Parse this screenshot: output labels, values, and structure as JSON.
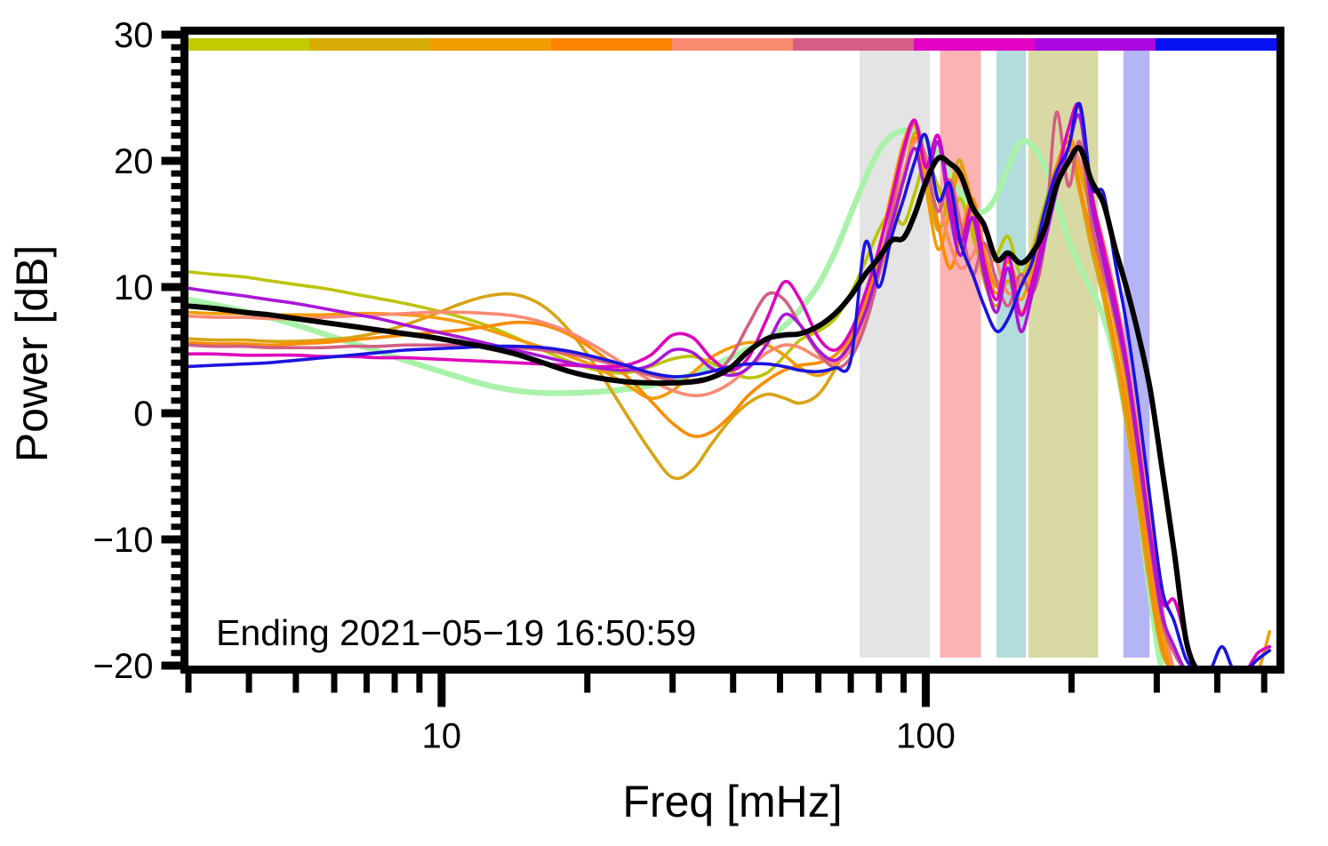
{
  "figure": {
    "background": "#ffffff"
  },
  "chart_data": {
    "type": "line",
    "title": "",
    "xlabel": "Freq [mHz]",
    "ylabel": "Power [dB]",
    "annotation": "Ending 2021−05−19 16:50:59",
    "x_scale": "log",
    "x_domain": [
      3,
      530
    ],
    "y_domain": [
      -20,
      30
    ],
    "grid": false,
    "legend": "none",
    "x_major_ticks": [
      10,
      100
    ],
    "x_major_tick_labels": [
      "10",
      "100"
    ],
    "x_minor_ticks": [
      3,
      4,
      5,
      6,
      7,
      8,
      9,
      20,
      30,
      40,
      50,
      60,
      70,
      80,
      90,
      200,
      300,
      400,
      500
    ],
    "y_major_ticks": [
      30,
      20,
      10,
      0,
      -10,
      -20
    ],
    "y_major_tick_labels": [
      "30",
      "20",
      "10",
      "0",
      "−10",
      "−20"
    ],
    "y_minor_step": 1,
    "bands": [
      {
        "name": "band-gray",
        "x0": 73,
        "x1": 102,
        "color": "#e4e4e4"
      },
      {
        "name": "band-pink",
        "x0": 107,
        "x1": 130,
        "color": "#fbb3b3"
      },
      {
        "name": "band-teal",
        "x0": 140,
        "x1": 161,
        "color": "#b3dcdc"
      },
      {
        "name": "band-olive",
        "x0": 163,
        "x1": 227,
        "color": "#d9d9a4"
      },
      {
        "name": "band-lavender",
        "x0": 256,
        "x1": 290,
        "color": "#b5b5f5"
      }
    ],
    "colorbar_segments": [
      "#c2cb01",
      "#d7ad05",
      "#f29d02",
      "#fb8502",
      "#fa8a70",
      "#d55f84",
      "#e202c4",
      "#aa08e0",
      "#0713f2"
    ],
    "x": [
      3.0,
      3.4,
      3.9,
      4.4,
      5.0,
      5.7,
      6.5,
      7.4,
      8.4,
      9.6,
      11,
      12.5,
      14.2,
      16.2,
      18.4,
      21,
      24,
      27,
      30,
      33,
      36,
      39.5,
      43,
      47,
      51,
      55,
      60,
      65,
      70,
      75,
      80,
      85,
      90,
      95,
      100,
      106,
      112,
      118,
      125,
      132,
      140,
      148,
      157,
      166,
      176,
      186,
      197,
      208,
      220,
      233,
      246,
      260,
      275,
      291,
      308,
      326,
      345,
      365,
      386,
      409,
      433,
      458,
      485,
      513
    ],
    "series": [
      {
        "name": "smooth-reference",
        "color": "#a9f2a9",
        "width": 6.5,
        "values": [
          9.0,
          8.6,
          8.1,
          7.6,
          7.0,
          6.3,
          5.6,
          4.9,
          4.2,
          3.5,
          2.8,
          2.2,
          1.8,
          1.6,
          1.6,
          1.7,
          1.9,
          2.2,
          2.6,
          3.1,
          3.7,
          4.4,
          5.1,
          5.9,
          6.9,
          8.2,
          10.2,
          12.8,
          15.8,
          18.6,
          20.8,
          22.0,
          22.4,
          22.3,
          21.7,
          20.5,
          19.0,
          17.5,
          16.3,
          16.0,
          17.2,
          19.5,
          21.5,
          21.2,
          19.6,
          16.8,
          13.8,
          11.6,
          9.8,
          7.6,
          4.2,
          -0.5,
          -7.0,
          -14.5,
          -20.4,
          -20.4,
          -20.4,
          -20.4,
          -20.4,
          -20.4,
          -20.4,
          -20.4,
          -20.4,
          -20.4
        ]
      },
      {
        "name": "segment-1-olive",
        "color": "#bcc405",
        "width": 3.6,
        "values": [
          11.2,
          11.0,
          10.8,
          10.5,
          10.2,
          9.9,
          9.5,
          9.1,
          8.7,
          8.2,
          7.6,
          6.9,
          6.0,
          5.0,
          4.1,
          3.4,
          3.2,
          3.7,
          4.3,
          4.5,
          4.0,
          3.3,
          2.8,
          3.2,
          4.5,
          5.8,
          6.5,
          7.5,
          9.5,
          12.0,
          14.5,
          16.0,
          15.0,
          17.5,
          20.0,
          18.0,
          15.5,
          17.0,
          14.0,
          11.5,
          12.5,
          14.0,
          11.0,
          13.0,
          16.5,
          19.5,
          21.5,
          19.0,
          16.0,
          12.0,
          8.0,
          3.0,
          -3.0,
          -10.0,
          -16.0,
          -20.4,
          -20.4,
          -20.4,
          -20.4,
          -20.4,
          -20.4,
          -20.4,
          -20.4,
          -20.4
        ]
      },
      {
        "name": "segment-2-gold",
        "color": "#d8a414",
        "width": 3.6,
        "values": [
          5.9,
          5.8,
          5.8,
          5.7,
          5.7,
          5.8,
          6.0,
          6.4,
          7.0,
          7.8,
          8.7,
          9.3,
          9.4,
          8.5,
          6.5,
          3.5,
          0.0,
          -3.0,
          -5.1,
          -4.5,
          -2.5,
          -0.5,
          0.8,
          1.5,
          1.2,
          0.8,
          1.5,
          3.5,
          6.0,
          8.5,
          11.0,
          14.5,
          18.5,
          22.2,
          19.0,
          14.5,
          17.5,
          20.0,
          15.0,
          10.5,
          8.5,
          10.5,
          8.0,
          10.0,
          14.0,
          18.0,
          21.0,
          17.5,
          13.0,
          9.0,
          4.5,
          -1.0,
          -7.5,
          -14.0,
          -19.0,
          -20.4,
          -20.4,
          -20.4,
          -20.4,
          -20.4,
          -20.4,
          -20.4,
          -20.4,
          -20.4
        ]
      },
      {
        "name": "segment-3-orange",
        "color": "#f49c05",
        "width": 3.6,
        "values": [
          8.0,
          7.9,
          7.9,
          7.8,
          7.8,
          7.8,
          7.9,
          7.9,
          7.8,
          7.6,
          7.2,
          6.6,
          5.9,
          5.2,
          4.5,
          3.6,
          2.3,
          1.2,
          1.8,
          3.2,
          4.4,
          5.2,
          5.6,
          5.4,
          4.6,
          3.6,
          3.0,
          3.8,
          6.0,
          9.0,
          13.0,
          17.5,
          21.5,
          22.8,
          18.0,
          13.0,
          16.0,
          19.5,
          16.5,
          12.0,
          9.5,
          11.5,
          9.0,
          11.5,
          15.5,
          19.0,
          22.0,
          19.5,
          15.5,
          11.5,
          7.0,
          2.0,
          -4.5,
          -11.5,
          -17.5,
          -20.4,
          -20.4,
          -20.4,
          -20.4,
          -20.4,
          -20.4,
          -20.4,
          -20.4,
          -17.3
        ]
      },
      {
        "name": "segment-4-darkorange",
        "color": "#f98c03",
        "width": 3.6,
        "values": [
          5.6,
          5.5,
          5.5,
          5.4,
          5.5,
          5.6,
          5.8,
          6.0,
          6.2,
          6.4,
          6.6,
          6.9,
          7.2,
          7.0,
          6.2,
          4.8,
          3.0,
          1.0,
          -0.8,
          -1.8,
          -1.5,
          -0.2,
          1.4,
          2.6,
          3.4,
          3.8,
          4.0,
          4.6,
          6.2,
          8.8,
          12.0,
          15.5,
          19.0,
          21.8,
          20.0,
          15.0,
          11.5,
          14.0,
          17.0,
          13.0,
          10.0,
          12.0,
          10.0,
          12.5,
          16.0,
          19.5,
          21.5,
          18.0,
          14.0,
          10.0,
          5.5,
          0.5,
          -6.0,
          -13.0,
          -18.5,
          -20.4,
          -20.4,
          -20.4,
          -20.4,
          -20.4,
          -20.4,
          -20.4,
          -20.4,
          -20.4
        ]
      },
      {
        "name": "segment-5-salmon",
        "color": "#fa8a72",
        "width": 3.6,
        "values": [
          7.7,
          7.6,
          7.6,
          7.5,
          7.5,
          7.6,
          7.7,
          7.8,
          7.9,
          8.0,
          8.0,
          7.9,
          7.7,
          7.2,
          6.4,
          5.2,
          3.8,
          2.6,
          1.8,
          1.4,
          1.6,
          2.4,
          3.6,
          4.8,
          5.4,
          5.2,
          4.4,
          4.0,
          5.0,
          7.5,
          11.0,
          15.0,
          19.0,
          21.5,
          20.5,
          17.0,
          13.5,
          11.5,
          12.5,
          14.5,
          12.0,
          9.5,
          10.5,
          12.0,
          15.0,
          18.5,
          21.0,
          20.0,
          17.0,
          13.5,
          9.5,
          4.5,
          -1.5,
          -8.5,
          -15.5,
          -20.4,
          -20.4,
          -20.4,
          -20.4,
          -20.4,
          -20.4,
          -20.4,
          -20.4,
          -20.4
        ]
      },
      {
        "name": "segment-6-rose",
        "color": "#d25f84",
        "width": 3.6,
        "values": [
          5.4,
          5.3,
          5.3,
          5.2,
          5.2,
          5.2,
          5.3,
          5.3,
          5.4,
          5.4,
          5.4,
          5.3,
          5.2,
          5.0,
          4.7,
          4.2,
          3.6,
          3.0,
          2.6,
          2.4,
          2.8,
          4.4,
          7.0,
          9.4,
          9.0,
          7.0,
          4.8,
          3.6,
          4.4,
          7.0,
          11.0,
          16.0,
          20.5,
          23.0,
          20.0,
          16.0,
          18.5,
          15.0,
          11.0,
          13.5,
          10.5,
          8.5,
          11.0,
          9.5,
          13.5,
          23.8,
          18.0,
          21.5,
          15.0,
          11.0,
          7.5,
          3.0,
          -3.5,
          -10.5,
          -16.5,
          -19.0,
          -20.4,
          -20.4,
          -20.4,
          -20.4,
          -20.4,
          -20.4,
          -20.4,
          -20.4
        ]
      },
      {
        "name": "segment-7-magenta",
        "color": "#de01bd",
        "width": 3.6,
        "values": [
          4.7,
          4.7,
          4.6,
          4.6,
          4.6,
          4.5,
          4.5,
          4.4,
          4.4,
          4.3,
          4.2,
          4.1,
          4.0,
          3.9,
          3.8,
          3.7,
          3.8,
          4.6,
          6.2,
          6.0,
          4.4,
          3.4,
          4.4,
          7.5,
          10.4,
          9.0,
          6.0,
          5.0,
          6.5,
          9.5,
          13.0,
          17.0,
          21.0,
          23.2,
          19.5,
          22.0,
          17.0,
          13.5,
          16.5,
          12.0,
          9.0,
          12.5,
          7.8,
          10.5,
          14.5,
          18.5,
          22.5,
          24.3,
          17.5,
          13.0,
          9.0,
          4.0,
          -2.5,
          -9.5,
          -15.0,
          -14.8,
          -18.0,
          -20.4,
          -20.4,
          -20.4,
          -20.4,
          -20.4,
          -19.0,
          -18.5
        ]
      },
      {
        "name": "segment-8-purple",
        "color": "#aa16d8",
        "width": 3.6,
        "values": [
          9.9,
          9.6,
          9.3,
          9.0,
          8.7,
          8.3,
          7.9,
          7.5,
          7.0,
          6.5,
          6.0,
          5.5,
          5.0,
          4.5,
          4.0,
          3.6,
          3.4,
          3.8,
          5.0,
          4.8,
          3.6,
          3.0,
          3.6,
          5.5,
          7.8,
          7.0,
          5.0,
          4.2,
          5.5,
          8.0,
          11.5,
          15.0,
          18.5,
          21.0,
          18.0,
          21.5,
          16.0,
          12.5,
          15.5,
          11.0,
          8.0,
          11.5,
          6.5,
          9.5,
          13.5,
          17.5,
          21.0,
          23.5,
          16.5,
          12.0,
          8.0,
          3.5,
          -3.0,
          -10.0,
          -16.0,
          -18.5,
          -20.4,
          -20.4,
          -20.4,
          -20.4,
          -20.4,
          -20.4,
          -20.4,
          -20.4
        ]
      },
      {
        "name": "segment-9-blue",
        "color": "#1b14e0",
        "width": 3.6,
        "values": [
          3.7,
          3.8,
          3.9,
          4.0,
          4.2,
          4.4,
          4.6,
          4.8,
          5.0,
          5.1,
          5.2,
          5.3,
          5.3,
          5.2,
          4.9,
          4.4,
          3.8,
          3.2,
          2.9,
          3.0,
          3.3,
          3.7,
          3.9,
          3.9,
          3.7,
          3.4,
          3.3,
          3.6,
          4.2,
          13.5,
          10.0,
          14.0,
          17.0,
          20.0,
          22.0,
          16.9,
          18.2,
          13.5,
          11.0,
          8.5,
          6.5,
          7.5,
          10.0,
          12.0,
          16.0,
          19.1,
          21.0,
          24.5,
          18.0,
          17.4,
          12.0,
          7.0,
          0.5,
          -7.0,
          -14.0,
          -16.5,
          -19.5,
          -20.4,
          -20.4,
          -18.5,
          -20.4,
          -20.4,
          -19.5,
          -18.8
        ]
      },
      {
        "name": "mean-spectrum",
        "color": "#000000",
        "width": 6,
        "values": [
          8.5,
          8.3,
          8.0,
          7.8,
          7.5,
          7.2,
          6.9,
          6.6,
          6.3,
          6.0,
          5.6,
          5.2,
          4.7,
          4.0,
          3.3,
          2.8,
          2.5,
          2.4,
          2.4,
          2.5,
          2.8,
          3.6,
          4.9,
          5.9,
          6.2,
          6.3,
          6.9,
          7.9,
          9.3,
          11.0,
          12.3,
          13.7,
          13.9,
          15.8,
          18.3,
          20.2,
          19.8,
          18.9,
          16.3,
          14.9,
          12.2,
          12.7,
          11.9,
          12.7,
          14.6,
          18.0,
          19.9,
          21.0,
          18.4,
          16.6,
          13.1,
          9.9,
          6.2,
          1.8,
          -4.5,
          -11.0,
          -18.0,
          -20.4,
          -20.4,
          -20.4,
          -20.4,
          -20.4,
          -20.4,
          -20.4
        ]
      }
    ]
  }
}
